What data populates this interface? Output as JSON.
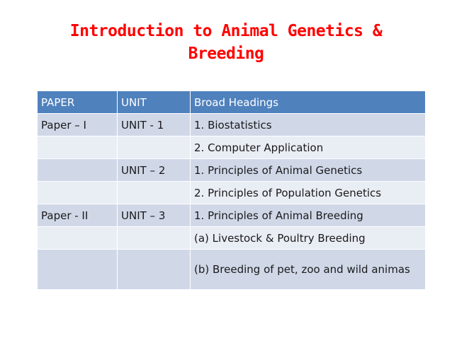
{
  "slide": {
    "title_line1": "Introduction to Animal Genetics &",
    "title_line2": "Breeding",
    "title_color": "#ff0000"
  },
  "table": {
    "headers": [
      "PAPER",
      "UNIT",
      "Broad Headings"
    ],
    "header_color": "#4f81bd",
    "band_colors": [
      "#d0d8e8",
      "#e9edf4"
    ],
    "rows": [
      [
        "Paper – I",
        "UNIT - 1",
        "1. Biostatistics"
      ],
      [
        "",
        "",
        "2. Computer Application"
      ],
      [
        "",
        "UNIT – 2",
        "1. Principles of Animal Genetics"
      ],
      [
        "",
        "",
        "2. Principles of Population Genetics"
      ],
      [
        "Paper - II",
        "UNIT – 3",
        "1. Principles of Animal Breeding"
      ],
      [
        "",
        "",
        "(a) Livestock & Poultry Breeding"
      ],
      [
        "",
        "",
        "(b) Breeding of pet, zoo and wild animas"
      ]
    ]
  }
}
